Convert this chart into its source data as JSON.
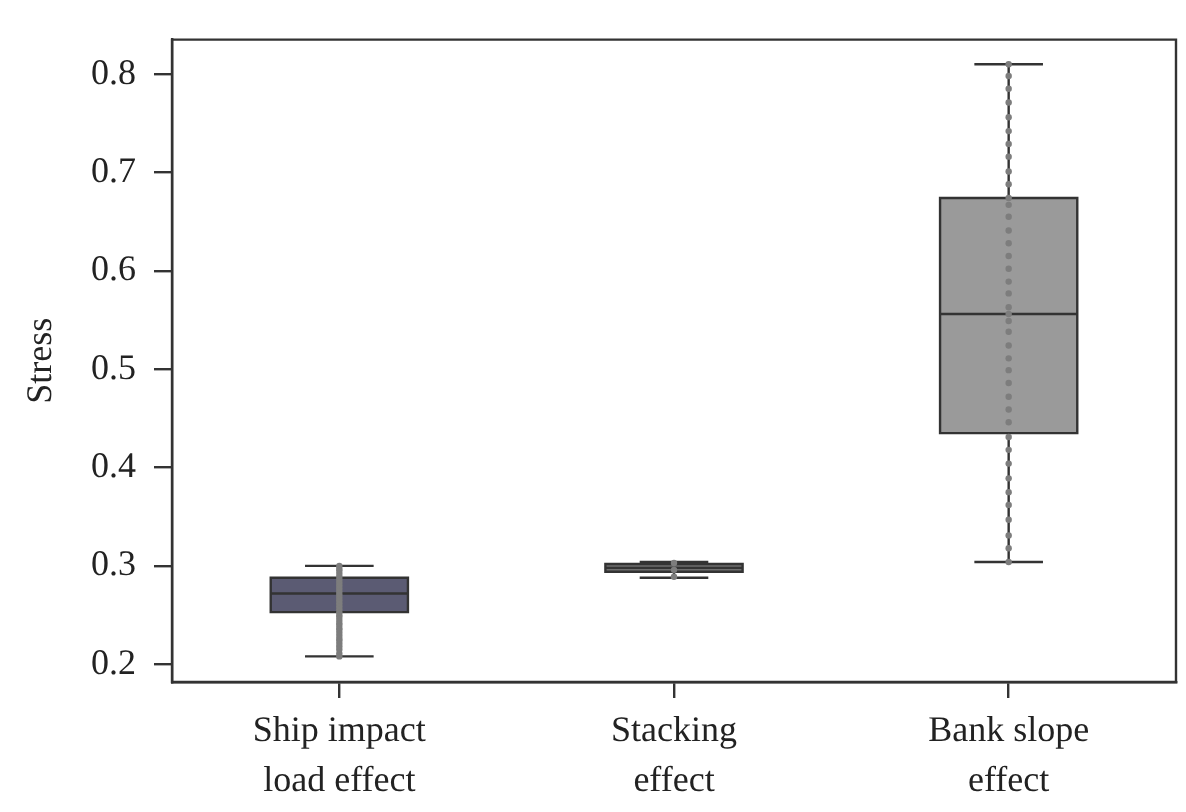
{
  "chart_data": {
    "type": "box",
    "ylabel": "Stress",
    "categories": [
      "Ship impact\nload effect",
      "Stacking\neffect",
      "Bank slope\neffect"
    ],
    "ylim": [
      0.182,
      0.835
    ],
    "yticks": [
      0.2,
      0.3,
      0.4,
      0.5,
      0.6,
      0.7,
      0.8
    ],
    "marker": "circle",
    "series": [
      {
        "type": "box",
        "colors": [
          "#5b5b73",
          "#6e6e6e",
          "#9a9a9a"
        ],
        "boxes": [
          {
            "low": 0.208,
            "q1": 0.253,
            "median": 0.272,
            "q3": 0.288,
            "high": 0.3
          },
          {
            "low": 0.288,
            "q1": 0.294,
            "median": 0.298,
            "q3": 0.302,
            "high": 0.304
          },
          {
            "low": 0.304,
            "q1": 0.435,
            "median": 0.556,
            "q3": 0.674,
            "high": 0.81
          }
        ]
      },
      {
        "type": "scatter",
        "color": "#7d7d7d",
        "x": [
          "Ship impact\nload effect",
          "Ship impact\nload effect",
          "Ship impact\nload effect",
          "Ship impact\nload effect",
          "Ship impact\nload effect",
          "Ship impact\nload effect",
          "Ship impact\nload effect",
          "Ship impact\nload effect",
          "Ship impact\nload effect",
          "Ship impact\nload effect",
          "Ship impact\nload effect",
          "Ship impact\nload effect",
          "Ship impact\nload effect",
          "Ship impact\nload effect",
          "Ship impact\nload effect",
          "Ship impact\nload effect",
          "Ship impact\nload effect",
          "Ship impact\nload effect",
          "Ship impact\nload effect",
          "Ship impact\nload effect",
          "Ship impact\nload effect",
          "Ship impact\nload effect",
          "Ship impact\nload effect",
          "Ship impact\nload effect",
          "Ship impact\nload effect",
          "Ship impact\nload effect",
          "Ship impact\nload effect",
          "Ship impact\nload effect",
          "Ship impact\nload effect",
          "Ship impact\nload effect",
          "Ship impact\nload effect",
          "Ship impact\nload effect",
          "Ship impact\nload effect",
          "Stacking\neffect",
          "Stacking\neffect",
          "Stacking\neffect",
          "Bank slope\neffect",
          "Bank slope\neffect",
          "Bank slope\neffect",
          "Bank slope\neffect",
          "Bank slope\neffect",
          "Bank slope\neffect",
          "Bank slope\neffect",
          "Bank slope\neffect",
          "Bank slope\neffect",
          "Bank slope\neffect",
          "Bank slope\neffect",
          "Bank slope\neffect",
          "Bank slope\neffect",
          "Bank slope\neffect",
          "Bank slope\neffect",
          "Bank slope\neffect",
          "Bank slope\neffect",
          "Bank slope\neffect",
          "Bank slope\neffect",
          "Bank slope\neffect",
          "Bank slope\neffect",
          "Bank slope\neffect",
          "Bank slope\neffect",
          "Bank slope\neffect",
          "Bank slope\neffect",
          "Bank slope\neffect",
          "Bank slope\neffect",
          "Bank slope\neffect",
          "Bank slope\neffect",
          "Bank slope\neffect",
          "Bank slope\neffect",
          "Bank slope\neffect",
          "Bank slope\neffect",
          "Bank slope\neffect",
          "Bank slope\neffect",
          "Bank slope\neffect",
          "Bank slope\neffect",
          "Bank slope\neffect",
          "Bank slope\neffect",
          "Bank slope\neffect"
        ],
        "values": [
          0.208,
          0.211,
          0.215,
          0.218,
          0.221,
          0.224,
          0.226,
          0.229,
          0.232,
          0.235,
          0.237,
          0.24,
          0.242,
          0.245,
          0.248,
          0.25,
          0.253,
          0.256,
          0.259,
          0.262,
          0.265,
          0.268,
          0.271,
          0.274,
          0.277,
          0.28,
          0.283,
          0.286,
          0.289,
          0.292,
          0.295,
          0.297,
          0.3,
          0.289,
          0.296,
          0.303,
          0.304,
          0.318,
          0.331,
          0.347,
          0.362,
          0.375,
          0.389,
          0.404,
          0.418,
          0.431,
          0.446,
          0.459,
          0.472,
          0.486,
          0.499,
          0.511,
          0.524,
          0.538,
          0.549,
          0.556,
          0.563,
          0.577,
          0.589,
          0.602,
          0.615,
          0.628,
          0.641,
          0.655,
          0.667,
          0.674,
          0.688,
          0.701,
          0.716,
          0.729,
          0.742,
          0.756,
          0.771,
          0.785,
          0.798,
          0.81
        ]
      }
    ]
  }
}
